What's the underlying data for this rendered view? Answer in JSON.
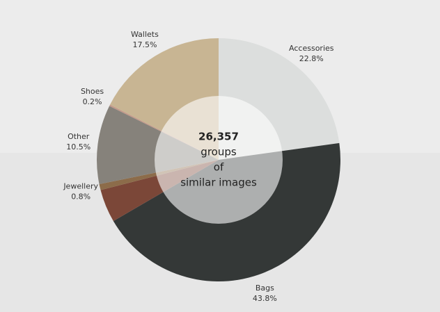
{
  "chart_data": {
    "type": "donut",
    "categories": [
      "Accessories",
      "Bags",
      null,
      "Jewellery",
      "Other",
      "Shoes",
      "Wallets"
    ],
    "values": [
      22.8,
      43.8,
      4.4,
      0.8,
      10.5,
      0.2,
      17.5
    ],
    "value_labels": [
      "22.8%",
      "43.8%",
      null,
      "0.8%",
      "10.5%",
      "0.2%",
      "17.5%"
    ],
    "colors": [
      "#dcdedd",
      "#343837",
      "#7b4738",
      "#8c6c4a",
      "#86827b",
      "#c49a8a",
      "#c8b593"
    ],
    "center_text": [
      "26,357",
      "groups",
      "of",
      "similar images"
    ]
  }
}
